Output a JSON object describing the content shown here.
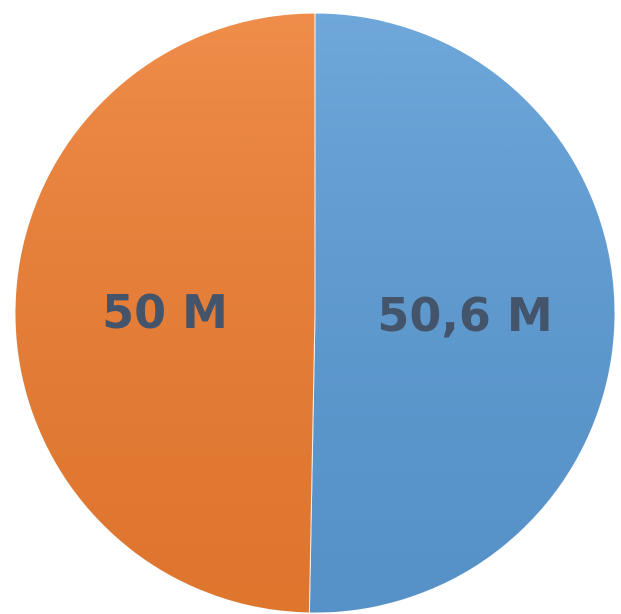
{
  "chart_data": {
    "type": "pie",
    "values": [
      50.6,
      50
    ],
    "value_labels": [
      "50,6 M",
      "50 M"
    ],
    "colors": [
      "#5b9bd5",
      "#ed7d31"
    ],
    "start_angle": 0,
    "direction": "clockwise"
  }
}
